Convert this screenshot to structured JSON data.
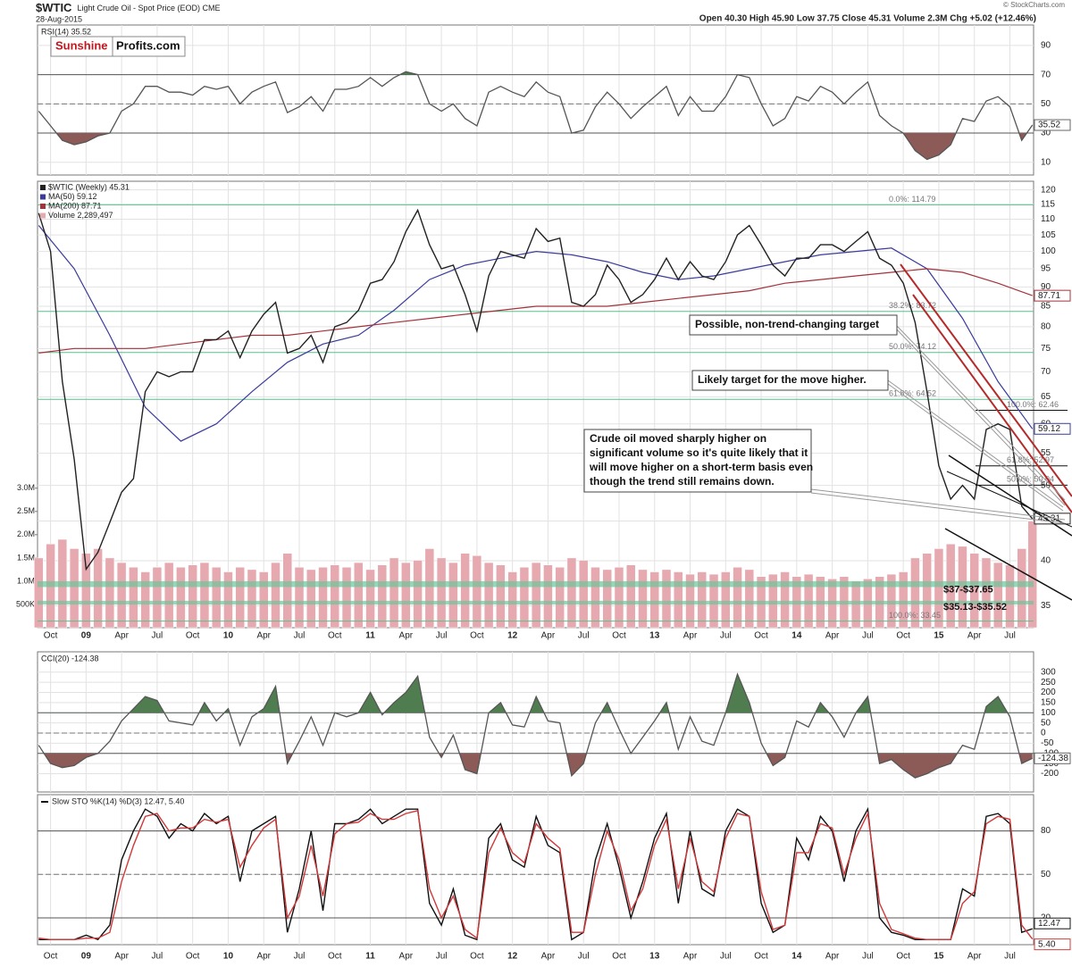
{
  "header": {
    "credit": "© StockCharts.com"
  },
  "chart_data": [
    {
      "type": "line",
      "title": "RSI(14) 35.52",
      "logo": [
        "Sunshine",
        "Profits.com"
      ],
      "color": "#555555",
      "ylim": [
        1.3,
        104
      ],
      "yticks": [
        10,
        30,
        50,
        70,
        90
      ],
      "signal_lines": [
        30,
        70
      ],
      "center_line": 50,
      "fill_high": "#4f7d4f",
      "fill_low": "#8c5b57",
      "values": [
        45,
        35,
        25,
        22,
        24,
        28,
        30,
        45,
        50,
        62,
        62,
        58,
        58,
        56,
        62,
        60,
        62,
        50,
        58,
        62,
        65,
        44,
        48,
        55,
        45,
        60,
        60,
        62,
        68,
        62,
        68,
        72,
        70,
        50,
        45,
        50,
        40,
        35,
        58,
        62,
        58,
        55,
        65,
        58,
        55,
        30,
        32,
        48,
        58,
        50,
        40,
        48,
        55,
        62,
        42,
        55,
        45,
        45,
        55,
        70,
        68,
        50,
        35,
        40,
        55,
        52,
        62,
        58,
        50,
        58,
        65,
        42,
        35,
        30,
        18,
        12,
        15,
        22,
        40,
        38,
        52,
        55,
        48,
        25,
        35.52
      ]
    },
    {
      "type": "line",
      "title": "$WTIC",
      "subtitle": "Light Crude Oil - Spot Price (EOD) CME",
      "date": "28-Aug-2015",
      "quote": "Open 40.30  High 45.90  Low 37.75  Close 45.31  Volume 2.3M  Chg +5.02 (+12.46%)",
      "log": true,
      "grid": true,
      "xlim": [
        7.9,
        92
      ],
      "xticks": [
        {
          "value": 9,
          "label": "Oct"
        },
        {
          "value": 12,
          "label": "09"
        },
        {
          "value": 15,
          "label": "Apr"
        },
        {
          "value": 18,
          "label": "Jul"
        },
        {
          "value": 21,
          "label": "Oct"
        },
        {
          "value": 24,
          "label": "10"
        },
        {
          "value": 27,
          "label": "Apr"
        },
        {
          "value": 30,
          "label": "Jul"
        },
        {
          "value": 33,
          "label": "Oct"
        },
        {
          "value": 36,
          "label": "11"
        },
        {
          "value": 39,
          "label": "Apr"
        },
        {
          "value": 42,
          "label": "Jul"
        },
        {
          "value": 45,
          "label": "Oct"
        },
        {
          "value": 48,
          "label": "12"
        },
        {
          "value": 51,
          "label": "Apr"
        },
        {
          "value": 54,
          "label": "Jul"
        },
        {
          "value": 57,
          "label": "Oct"
        },
        {
          "value": 60,
          "label": "13"
        },
        {
          "value": 63,
          "label": "Apr"
        },
        {
          "value": 66,
          "label": "Jul"
        },
        {
          "value": 69,
          "label": "Oct"
        },
        {
          "value": 72,
          "label": "14"
        },
        {
          "value": 75,
          "label": "Apr"
        },
        {
          "value": 78,
          "label": "Jul"
        },
        {
          "value": 81,
          "label": "Oct"
        },
        {
          "value": 84,
          "label": "15"
        },
        {
          "value": 87,
          "label": "Apr"
        },
        {
          "value": 90,
          "label": "Jul"
        }
      ],
      "x": [
        8,
        9,
        10,
        11,
        12,
        13,
        14,
        15,
        16,
        17,
        18,
        19,
        20,
        21,
        22,
        23,
        24,
        25,
        26,
        27,
        28,
        29,
        30,
        31,
        32,
        33,
        34,
        35,
        36,
        37,
        38,
        39,
        40,
        41,
        42,
        43,
        44,
        45,
        46,
        47,
        48,
        49,
        50,
        51,
        52,
        53,
        54,
        55,
        56,
        57,
        58,
        59,
        60,
        61,
        62,
        63,
        64,
        65,
        66,
        67,
        68,
        69,
        70,
        71,
        72,
        73,
        74,
        75,
        76,
        77,
        78,
        79,
        80,
        81,
        82,
        83,
        84,
        85,
        86,
        87,
        88,
        89,
        90,
        91,
        91.9
      ],
      "ylim": [
        32.8,
        123.1
      ],
      "yticks": [
        35,
        40,
        45,
        50,
        55,
        60,
        65,
        70,
        75,
        80,
        85,
        90,
        95,
        100,
        105,
        110,
        115,
        120
      ],
      "y2lim": [
        0,
        9600000
      ],
      "y2ticks": [
        {
          "value": 500000,
          "label": "500K"
        },
        {
          "value": 1000000,
          "label": "1.0M"
        },
        {
          "value": 1500000,
          "label": "1.5M"
        },
        {
          "value": 2000000,
          "label": "2.0M"
        },
        {
          "value": 2500000,
          "label": "2.5M"
        },
        {
          "value": 3000000,
          "label": "3.0M"
        }
      ],
      "series": [
        {
          "name": "$WTIC (Weekly) 45.31",
          "color": "#222222",
          "values": [
            112,
            100,
            68,
            54,
            39,
            41,
            44.8,
            49,
            51,
            66,
            70,
            69,
            70,
            70,
            77,
            77,
            79,
            73,
            79,
            83,
            86,
            74,
            75,
            78,
            72,
            80,
            81,
            84,
            91,
            92,
            97,
            106,
            113,
            102,
            95,
            96,
            88,
            79,
            93,
            100,
            99,
            98,
            107,
            103,
            104,
            86,
            85,
            88,
            96,
            92,
            86,
            88,
            92,
            98,
            92,
            97,
            93,
            92,
            97,
            105,
            108,
            102,
            96,
            93,
            98,
            98,
            102,
            102,
            100,
            103,
            106,
            98,
            96,
            91,
            81,
            66,
            53,
            48,
            50,
            48,
            59,
            60,
            59,
            47,
            45.31
          ]
        },
        {
          "name": "MA(50) 59.12",
          "color": "#3b3b9c",
          "x": [
            8,
            11,
            14,
            17,
            20,
            23,
            26,
            29,
            32,
            35,
            38,
            41,
            44,
            47,
            50,
            53,
            56,
            59,
            62,
            65,
            68,
            71,
            74,
            77,
            80,
            83,
            86,
            89,
            91.9
          ],
          "values": [
            108,
            95,
            78,
            63,
            57,
            60,
            66,
            72,
            76,
            78,
            84,
            92,
            96,
            98,
            100,
            99,
            97,
            94,
            92,
            93,
            95,
            97,
            99,
            100,
            101,
            95,
            82,
            68,
            59.12
          ]
        },
        {
          "name": "MA(200) 87.71",
          "color": "#a3323c",
          "x": [
            8,
            11,
            14,
            17,
            20,
            23,
            26,
            29,
            32,
            35,
            38,
            41,
            44,
            47,
            50,
            53,
            56,
            59,
            62,
            65,
            68,
            71,
            74,
            77,
            80,
            83,
            86,
            89,
            91.9
          ],
          "values": [
            74,
            75,
            75,
            75,
            76,
            77,
            78,
            78,
            79,
            80,
            81,
            82,
            83,
            84,
            85,
            85,
            85,
            86,
            87,
            88,
            89,
            91,
            92,
            93,
            94,
            95,
            94,
            91,
            87.71
          ]
        },
        {
          "name": "Volume 2,289,497",
          "color": "#e6a9b0",
          "type": "bar",
          "axis": "y2",
          "values": [
            1500000,
            1800000,
            1900000,
            1700000,
            1600000,
            1700000,
            1500000,
            1400000,
            1300000,
            1200000,
            1300000,
            1400000,
            1300000,
            1350000,
            1400000,
            1300000,
            1200000,
            1300000,
            1250000,
            1200000,
            1400000,
            1600000,
            1300000,
            1250000,
            1300000,
            1350000,
            1300000,
            1400000,
            1250000,
            1350000,
            1500000,
            1400000,
            1450000,
            1700000,
            1500000,
            1400000,
            1600000,
            1550000,
            1400000,
            1350000,
            1200000,
            1300000,
            1400000,
            1350000,
            1300000,
            1500000,
            1450000,
            1300000,
            1250000,
            1300000,
            1350000,
            1250000,
            1200000,
            1250000,
            1200000,
            1150000,
            1200000,
            1150000,
            1200000,
            1300000,
            1250000,
            1100000,
            1150000,
            1200000,
            1100000,
            1150000,
            1100000,
            1050000,
            1100000,
            1000000,
            1050000,
            1100000,
            1150000,
            1200000,
            1500000,
            1600000,
            1700000,
            1800000,
            1750000,
            1600000,
            1500000,
            1400000,
            1350000,
            1700000,
            2289497
          ]
        }
      ],
      "levels": [
        {
          "value": 114.79,
          "label": "0.0%: 114.79"
        },
        {
          "value": 83.72,
          "label": "38.2%: 83.72"
        },
        {
          "value": 74.12,
          "label": "50.0%: 74.12"
        },
        {
          "value": 64.52,
          "label": "61.8%: 64.52"
        },
        {
          "value": 33.45,
          "label": "100.0%: 33.45"
        }
      ],
      "retracement": [
        {
          "value": 62.46,
          "label": "100.0%: 62.46"
        },
        {
          "value": 52.97,
          "label": "61.8%: 52.97"
        },
        {
          "value": 50.04,
          "label": "50.0%: 50.04"
        }
      ],
      "zones": [
        {
          "low": 37,
          "high": 37.65,
          "label": "$37-$37.65"
        },
        {
          "low": 35.13,
          "high": 35.52,
          "label": "$35.13-$35.52"
        }
      ],
      "annotations": [
        {
          "text": "Possible, non-trend-changing target"
        },
        {
          "text": "Likely target for the move higher."
        },
        {
          "lines": [
            "Crude oil moved sharply higher on",
            "significant volume so it's quite likely that it",
            "will move higher on a short-term basis even",
            "though the trend still remains down."
          ]
        }
      ]
    },
    {
      "type": "line",
      "title": "CCI(20) -124.38",
      "color": "#555555",
      "ylim": [
        -290,
        400
      ],
      "yticks": [
        300,
        250,
        200,
        150,
        100,
        50,
        0,
        -50,
        -100,
        -150,
        -200
      ],
      "signal_lines": [
        -100,
        100
      ],
      "center_line": 0,
      "fill_high": "#4f7d4f",
      "fill_low": "#8c5b57",
      "values": [
        -60,
        -150,
        -170,
        -160,
        -120,
        -100,
        -40,
        60,
        120,
        180,
        160,
        60,
        50,
        40,
        150,
        60,
        120,
        -60,
        80,
        120,
        230,
        -150,
        -40,
        80,
        -60,
        100,
        80,
        100,
        200,
        90,
        150,
        200,
        280,
        -20,
        -120,
        -10,
        -180,
        -200,
        100,
        150,
        40,
        30,
        180,
        60,
        50,
        -210,
        -150,
        50,
        150,
        20,
        -100,
        -20,
        60,
        150,
        -80,
        80,
        -40,
        -60,
        100,
        290,
        150,
        -50,
        -160,
        -120,
        60,
        30,
        150,
        80,
        -20,
        100,
        180,
        -150,
        -130,
        -180,
        -220,
        -200,
        -170,
        -150,
        -60,
        -80,
        130,
        180,
        80,
        -150,
        -124.38
      ]
    },
    {
      "type": "line",
      "title": "Slow STO %K(14) %D(3) 12.47, 5.40",
      "ylim": [
        1.5,
        105
      ],
      "yticks": [
        20,
        50,
        80
      ],
      "signal_lines": [
        20,
        80
      ],
      "center_line": 50,
      "series": [
        {
          "name": "%K(14)",
          "color": "#111111",
          "values": [
            5,
            5,
            5,
            5,
            8,
            5,
            15,
            60,
            80,
            95,
            90,
            75,
            85,
            80,
            92,
            85,
            90,
            45,
            80,
            85,
            90,
            10,
            40,
            80,
            25,
            85,
            85,
            88,
            95,
            85,
            90,
            95,
            95,
            30,
            15,
            40,
            8,
            5,
            75,
            85,
            60,
            55,
            90,
            70,
            65,
            5,
            10,
            60,
            85,
            55,
            20,
            45,
            75,
            92,
            30,
            80,
            40,
            35,
            80,
            95,
            90,
            30,
            10,
            15,
            75,
            60,
            90,
            80,
            45,
            80,
            95,
            20,
            10,
            8,
            5,
            5,
            5,
            5,
            40,
            35,
            90,
            92,
            85,
            10,
            12.47
          ]
        },
        {
          "name": "%D(3)",
          "color": "#d0393a",
          "values": [
            6,
            5,
            5,
            5,
            6,
            6,
            10,
            45,
            70,
            90,
            92,
            80,
            82,
            82,
            88,
            86,
            88,
            55,
            70,
            82,
            88,
            20,
            35,
            70,
            35,
            78,
            85,
            86,
            92,
            88,
            88,
            92,
            94,
            40,
            20,
            35,
            12,
            6,
            65,
            82,
            65,
            58,
            85,
            75,
            68,
            10,
            10,
            50,
            80,
            60,
            25,
            40,
            70,
            88,
            40,
            75,
            45,
            38,
            75,
            92,
            90,
            38,
            12,
            15,
            65,
            65,
            85,
            82,
            50,
            75,
            92,
            30,
            12,
            9,
            6,
            5,
            5,
            5,
            30,
            38,
            85,
            90,
            88,
            15,
            5.4
          ],
          "value_labels": [
            null,
            null,
            null,
            null,
            null,
            null,
            null,
            null,
            null,
            null,
            null,
            null,
            null,
            null,
            null,
            null,
            null,
            null,
            null,
            null,
            null,
            null,
            null,
            null,
            null,
            null,
            null,
            null,
            null,
            null,
            null,
            null,
            null,
            null,
            null,
            null,
            null,
            null,
            null,
            null,
            null,
            null,
            null,
            null,
            null,
            null,
            null,
            null,
            null,
            null,
            null,
            null,
            null,
            null,
            null,
            null,
            null,
            null,
            null,
            null,
            null,
            null,
            null,
            null,
            null,
            null,
            null,
            null,
            null,
            null,
            null,
            null,
            null,
            null,
            null,
            null,
            null,
            null,
            null,
            null,
            null,
            null,
            null,
            null,
            "5.40"
          ]
        }
      ]
    }
  ]
}
